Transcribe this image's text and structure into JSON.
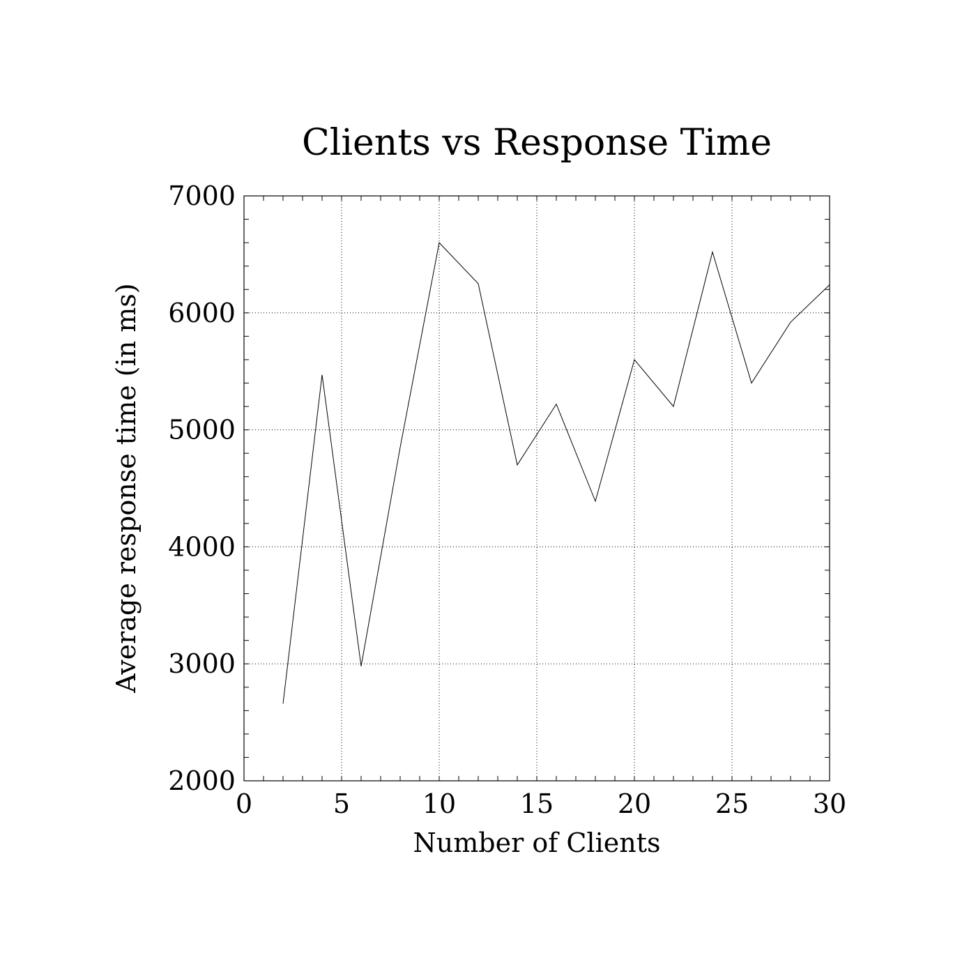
{
  "chart_data": {
    "type": "line",
    "title": "Clients vs Response Time",
    "xlabel": "Number of Clients",
    "ylabel": "Average response time (in ms)",
    "xlim": [
      0,
      30
    ],
    "ylim": [
      2000,
      7000
    ],
    "xticks": [
      0,
      5,
      10,
      15,
      20,
      25,
      30
    ],
    "yticks": [
      2000,
      3000,
      4000,
      5000,
      6000,
      7000
    ],
    "x_minor_step": 1,
    "y_minor_step": 200,
    "grid": true,
    "series": [
      {
        "x": [
          2,
          4,
          6,
          8,
          10,
          12,
          14,
          16,
          18,
          20,
          22,
          24,
          26,
          28,
          30
        ],
        "y": [
          2660,
          5470,
          2980,
          4850,
          6600,
          6250,
          4700,
          5220,
          4390,
          5600,
          5200,
          6520,
          5400,
          5920,
          6240
        ]
      }
    ]
  }
}
